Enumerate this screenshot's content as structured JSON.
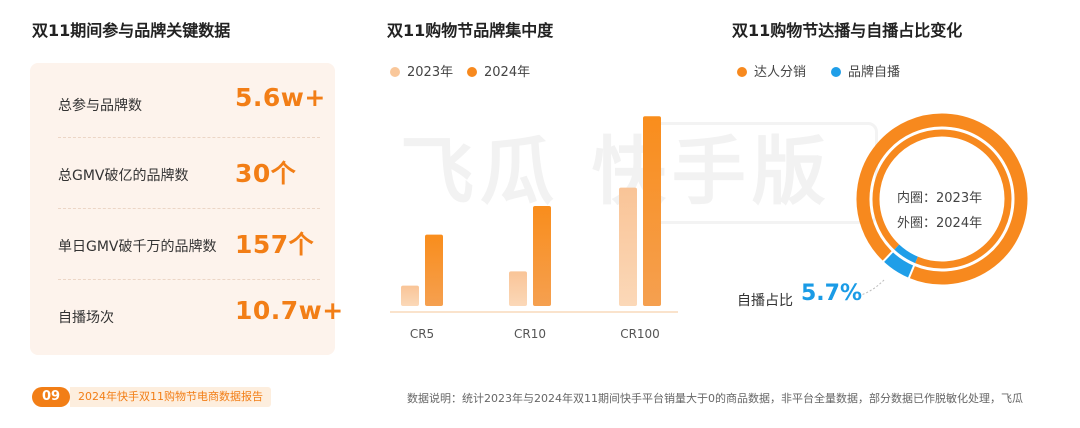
{
  "left_panel": {
    "title": "双11期间参与品牌关键数据",
    "stats": [
      {
        "label": "总参与品牌数",
        "value": "5.6w+"
      },
      {
        "label": "总GMV破亿的品牌数",
        "value": "30个"
      },
      {
        "label": "单日GMV破千万的品牌数",
        "value": "157个"
      },
      {
        "label": "自播场次",
        "value": "10.7w+"
      }
    ]
  },
  "watermark": {
    "text": "飞瓜 快手版"
  },
  "colors": {
    "orange": "#f7891e",
    "light_orange": "#f9c79a",
    "blue": "#1f9ee8",
    "card_bg": "#fdf3ec"
  },
  "chart_data": [
    {
      "type": "bar",
      "title": "双11购物节品牌集中度",
      "categories": [
        "CR5",
        "CR10",
        "CR100"
      ],
      "series": [
        {
          "name": "2023年",
          "values": [
            5,
            8.5,
            29
          ]
        },
        {
          "name": "2024年",
          "values": [
            17.5,
            24.5,
            46.5
          ]
        }
      ],
      "ylim": [
        0,
        50
      ],
      "grid": false,
      "legend": "top-left"
    },
    {
      "type": "pie",
      "title": "双11购物节达播与自播占比变化",
      "labels": [
        "达人分销",
        "品牌自播"
      ],
      "series": [
        {
          "ring": "内圈：2023年",
          "values": [
            94.3,
            5.7
          ]
        },
        {
          "ring": "外圈：2024年",
          "values": [
            94.3,
            5.7
          ]
        }
      ],
      "annotation": {
        "label": "自播占比",
        "value": "5.7%"
      },
      "legend": "top-left"
    }
  ],
  "footer": {
    "page_number": "09",
    "report_title": "2024年快手双11购物节电商数据报告",
    "note": "数据说明：统计2023年与2024年双11期间快手平台销量大于0的商品数据，非平台全量数据，部分数据已作脱敏化处理，飞瓜"
  }
}
